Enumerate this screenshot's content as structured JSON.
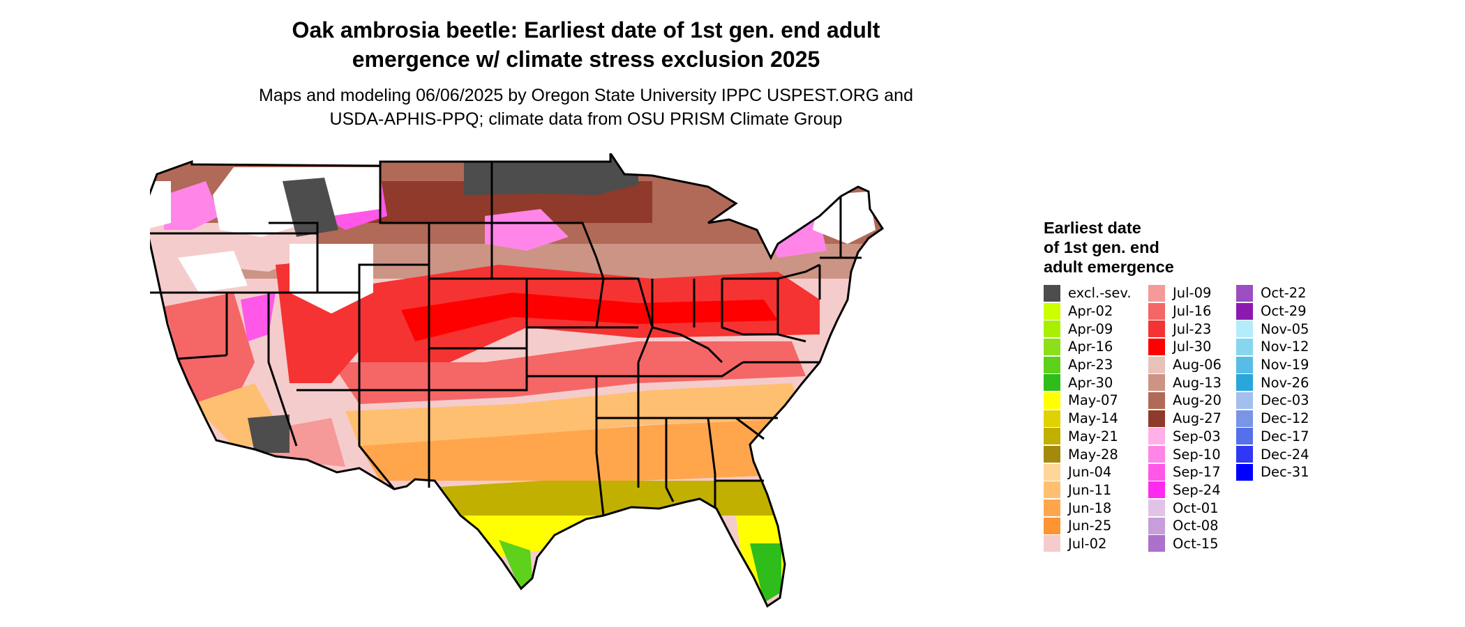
{
  "title_line1": "Oak ambrosia beetle: Earliest date of 1st gen. end adult",
  "title_line2": "emergence w/ climate stress exclusion 2025",
  "subtitle_line1": "Maps and modeling 06/06/2025 by Oregon State University IPPC USPEST.ORG and",
  "subtitle_line2": "USDA-APHIS-PPQ; climate data from OSU PRISM Climate Group",
  "legend": {
    "title_lines": [
      "Earliest date",
      "of 1st gen. end",
      "adult emergence"
    ],
    "columns": [
      [
        {
          "label": "excl.-sev.",
          "color": "#4d4d4d"
        },
        {
          "label": "Apr-02",
          "color": "#ccff00"
        },
        {
          "label": "Apr-09",
          "color": "#a8f000"
        },
        {
          "label": "Apr-16",
          "color": "#8ce01a"
        },
        {
          "label": "Apr-23",
          "color": "#5ed11a"
        },
        {
          "label": "Apr-30",
          "color": "#2ebd1a"
        },
        {
          "label": "May-07",
          "color": "#ffff00"
        },
        {
          "label": "May-14",
          "color": "#e0d100"
        },
        {
          "label": "May-21",
          "color": "#c2b000"
        },
        {
          "label": "May-28",
          "color": "#a38a0d"
        },
        {
          "label": "Jun-04",
          "color": "#ffd699"
        },
        {
          "label": "Jun-11",
          "color": "#ffbf70"
        },
        {
          "label": "Jun-18",
          "color": "#ffa64d"
        },
        {
          "label": "Jun-25",
          "color": "#ff9433"
        },
        {
          "label": "Jul-02",
          "color": "#f5cccc"
        }
      ],
      [
        {
          "label": "Jul-09",
          "color": "#f59999"
        },
        {
          "label": "Jul-16",
          "color": "#f56666"
        },
        {
          "label": "Jul-23",
          "color": "#f53333"
        },
        {
          "label": "Jul-30",
          "color": "#ff0000"
        },
        {
          "label": "Aug-06",
          "color": "#e8c2b8"
        },
        {
          "label": "Aug-13",
          "color": "#cc9484"
        },
        {
          "label": "Aug-20",
          "color": "#b06a57"
        },
        {
          "label": "Aug-27",
          "color": "#8f3a2a"
        },
        {
          "label": "Sep-03",
          "color": "#ffb0e8"
        },
        {
          "label": "Sep-10",
          "color": "#ff85e8"
        },
        {
          "label": "Sep-17",
          "color": "#ff57e8"
        },
        {
          "label": "Sep-24",
          "color": "#ff29f0"
        },
        {
          "label": "Oct-01",
          "color": "#e3c2e8"
        },
        {
          "label": "Oct-08",
          "color": "#c79ed9"
        },
        {
          "label": "Oct-15",
          "color": "#ad70cc"
        }
      ],
      [
        {
          "label": "Oct-22",
          "color": "#9c4dc2"
        },
        {
          "label": "Oct-29",
          "color": "#8c1ab0"
        },
        {
          "label": "Nov-05",
          "color": "#b3ecfa"
        },
        {
          "label": "Nov-12",
          "color": "#87d6f0"
        },
        {
          "label": "Nov-19",
          "color": "#57bde6"
        },
        {
          "label": "Nov-26",
          "color": "#29a6db"
        },
        {
          "label": "Dec-03",
          "color": "#a3bfed"
        },
        {
          "label": "Dec-12",
          "color": "#7a94e6"
        },
        {
          "label": "Dec-17",
          "color": "#5470eb"
        },
        {
          "label": "Dec-24",
          "color": "#2e38f5"
        },
        {
          "label": "Dec-31",
          "color": "#0000ff"
        }
      ]
    ]
  }
}
